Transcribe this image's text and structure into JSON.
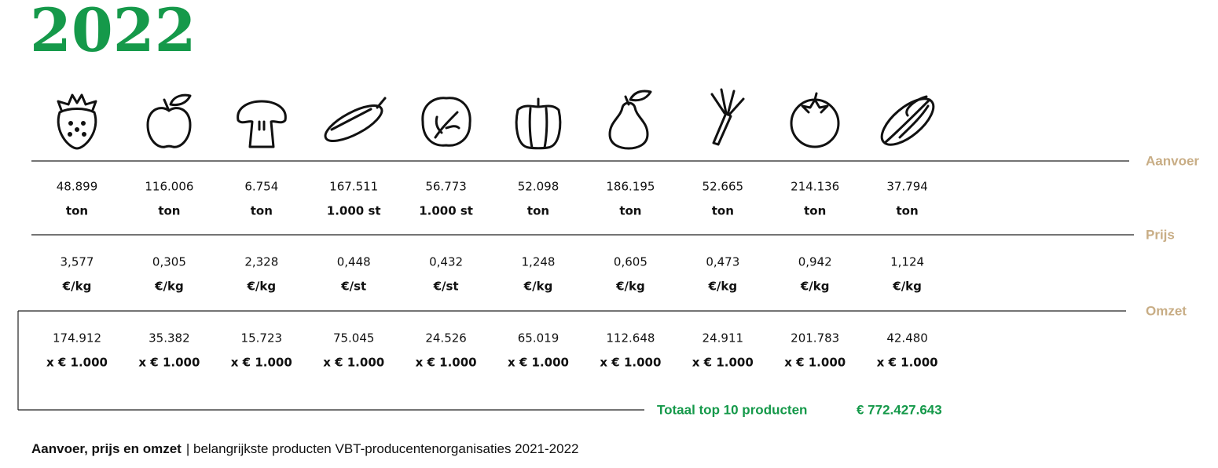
{
  "title": "2022",
  "sections": [
    {
      "label": "Aanvoer",
      "values": [
        "48.899",
        "116.006",
        "6.754",
        "167.511",
        "56.773",
        "52.098",
        "186.195",
        "52.665",
        "214.136",
        "37.794"
      ],
      "units": [
        "ton",
        "ton",
        "ton",
        "1.000 st",
        "1.000 st",
        "ton",
        "ton",
        "ton",
        "ton",
        "ton"
      ]
    },
    {
      "label": "Prijs",
      "values": [
        "3,577",
        "0,305",
        "2,328",
        "0,448",
        "0,432",
        "1,248",
        "0,605",
        "0,473",
        "0,942",
        "1,124"
      ],
      "units": [
        "€/kg",
        "€/kg",
        "€/kg",
        "€/st",
        "€/st",
        "€/kg",
        "€/kg",
        "€/kg",
        "€/kg",
        "€/kg"
      ]
    },
    {
      "label": "Omzet",
      "values": [
        "174.912",
        "35.382",
        "15.723",
        "75.045",
        "24.526",
        "65.019",
        "112.648",
        "24.911",
        "201.783",
        "42.480"
      ],
      "units": [
        "x € 1.000",
        "x € 1.000",
        "x € 1.000",
        "x € 1.000",
        "x € 1.000",
        "x € 1.000",
        "x € 1.000",
        "x € 1.000",
        "x € 1.000",
        "x € 1.000"
      ]
    }
  ],
  "total": {
    "label": "Totaal top 10 producten",
    "value": "€ 772.427.643"
  },
  "caption": {
    "bold": "Aanvoer, prijs en omzet",
    "text": "| belangrijkste producten VBT-producentenorganisaties 2021-2022"
  }
}
